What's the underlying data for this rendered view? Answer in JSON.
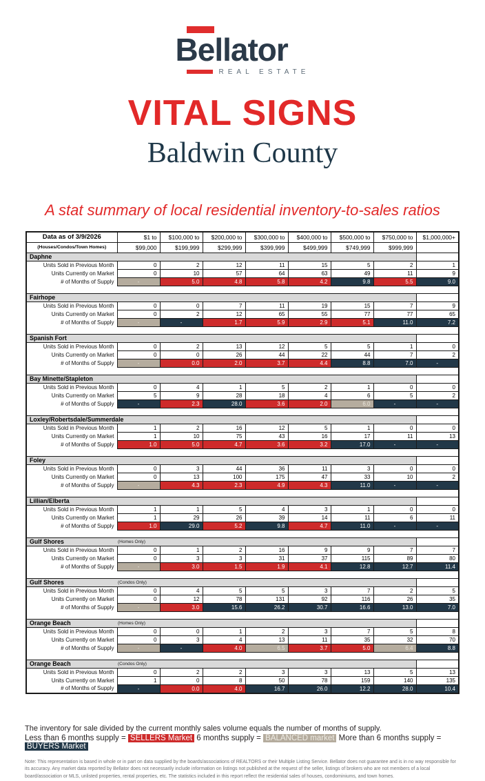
{
  "brand": {
    "name": "Bellator",
    "tagline": "REAL ESTATE"
  },
  "report": {
    "title": "VITAL SIGNS",
    "region": "Baldwin County",
    "subtitle": "A stat summary of local residential inventory-to-sales ratios"
  },
  "colors": {
    "sellers": "#ce2b2b",
    "buyers": "#223848",
    "balanced": "#b5ac9e",
    "section_bg": "#d9d9d9",
    "title_red": "#e22929",
    "navy_text": "#2b3a49",
    "logo_red": "#e02d2d"
  },
  "table": {
    "data_as_of": "Data as of 3/9/2026",
    "property_types": "(Houses/Condos/Town Homes)",
    "price_columns": [
      {
        "line1": "$1 to",
        "line2": "$99,000"
      },
      {
        "line1": "$100,000 to",
        "line2": "$199,999"
      },
      {
        "line1": "$200,000 to",
        "line2": "$299,999"
      },
      {
        "line1": "$300,000 to",
        "line2": "$399,999"
      },
      {
        "line1": "$400,000 to",
        "line2": "$499,999"
      },
      {
        "line1": "$500,000 to",
        "line2": "$749,999"
      },
      {
        "line1": "$750,000 to",
        "line2": "$999,999"
      },
      {
        "line1": "$1,000,000+",
        "line2": ""
      }
    ],
    "row_labels": {
      "sold": "Units Sold in Previous Month",
      "market": "Units Currently on Market",
      "supply": "# of Months of Supply"
    },
    "sections": [
      {
        "name": "Daphne",
        "note": "",
        "sold": [
          0,
          2,
          12,
          11,
          15,
          5,
          2,
          1
        ],
        "market": [
          0,
          10,
          57,
          64,
          63,
          49,
          11,
          9
        ],
        "supply": [
          "-",
          "5.0",
          "4.8",
          "5.8",
          "4.2",
          "9.8",
          "5.5",
          "9.0"
        ],
        "supply_colors": [
          "balanced",
          "sellers",
          "sellers",
          "sellers",
          "sellers",
          "buyers",
          "sellers",
          "buyers"
        ]
      },
      {
        "name": "Fairhope",
        "note": "",
        "sold": [
          0,
          0,
          7,
          11,
          19,
          15,
          7,
          9
        ],
        "market": [
          0,
          2,
          12,
          65,
          55,
          77,
          77,
          65
        ],
        "supply": [
          "-",
          "-",
          "1.7",
          "5.9",
          "2.9",
          "5.1",
          "11.0",
          "7.2"
        ],
        "supply_colors": [
          "balanced",
          "buyers",
          "sellers",
          "sellers",
          "sellers",
          "sellers",
          "buyers",
          "buyers"
        ]
      },
      {
        "name": "Spanish Fort",
        "note": "",
        "sold": [
          0,
          2,
          13,
          12,
          5,
          5,
          1,
          0
        ],
        "market": [
          0,
          0,
          26,
          44,
          22,
          44,
          7,
          2
        ],
        "supply": [
          "-",
          "0.0",
          "2.0",
          "3.7",
          "4.4",
          "8.8",
          "7.0",
          "-"
        ],
        "supply_colors": [
          "balanced",
          "sellers",
          "sellers",
          "sellers",
          "sellers",
          "buyers",
          "buyers",
          "buyers"
        ]
      },
      {
        "name": "Bay Minette/Stapleton",
        "note": "",
        "sold": [
          0,
          4,
          1,
          5,
          2,
          1,
          0,
          0
        ],
        "market": [
          5,
          9,
          28,
          18,
          4,
          6,
          5,
          2
        ],
        "supply": [
          "-",
          "2.3",
          "28.0",
          "3.6",
          "2.0",
          "6.0",
          "-",
          "-"
        ],
        "supply_colors": [
          "buyers",
          "sellers",
          "buyers",
          "sellers",
          "sellers",
          "balanced",
          "buyers",
          "buyers"
        ]
      },
      {
        "name": "Loxley/Robertsdale/Summerdale",
        "note": "",
        "sold": [
          1,
          2,
          16,
          12,
          5,
          1,
          0,
          0
        ],
        "market": [
          1,
          10,
          75,
          43,
          16,
          17,
          11,
          13
        ],
        "supply": [
          "1.0",
          "5.0",
          "4.7",
          "3.6",
          "3.2",
          "17.0",
          "-",
          "-"
        ],
        "supply_colors": [
          "sellers",
          "sellers",
          "sellers",
          "sellers",
          "sellers",
          "buyers",
          "buyers",
          "buyers"
        ]
      },
      {
        "name": "Foley",
        "note": "",
        "sold": [
          0,
          3,
          44,
          36,
          11,
          3,
          0,
          0
        ],
        "market": [
          0,
          13,
          100,
          175,
          47,
          33,
          10,
          2
        ],
        "supply": [
          "-",
          "4.3",
          "2.3",
          "4.9",
          "4.3",
          "11.0",
          "-",
          "-"
        ],
        "supply_colors": [
          "balanced",
          "sellers",
          "sellers",
          "sellers",
          "sellers",
          "buyers",
          "buyers",
          "buyers"
        ]
      },
      {
        "name": "Lillian/Elberta",
        "note": "",
        "sold": [
          1,
          1,
          5,
          4,
          3,
          1,
          0,
          0
        ],
        "market": [
          1,
          29,
          26,
          39,
          14,
          11,
          6,
          11
        ],
        "supply": [
          "1.0",
          "29.0",
          "5.2",
          "9.8",
          "4.7",
          "11.0",
          "-",
          "-"
        ],
        "supply_colors": [
          "sellers",
          "buyers",
          "sellers",
          "buyers",
          "sellers",
          "buyers",
          "buyers",
          "buyers"
        ]
      },
      {
        "name": "Gulf Shores",
        "note": "(Homes Only)",
        "sold": [
          0,
          1,
          2,
          16,
          9,
          9,
          7,
          7
        ],
        "market": [
          0,
          3,
          3,
          31,
          37,
          115,
          89,
          80
        ],
        "supply": [
          "-",
          "3.0",
          "1.5",
          "1.9",
          "4.1",
          "12.8",
          "12.7",
          "11.4"
        ],
        "supply_colors": [
          "balanced",
          "sellers",
          "sellers",
          "sellers",
          "sellers",
          "buyers",
          "buyers",
          "buyers"
        ]
      },
      {
        "name": "Gulf Shores",
        "note": "(Condos Only)",
        "sold": [
          0,
          4,
          5,
          5,
          3,
          7,
          2,
          5
        ],
        "market": [
          0,
          12,
          78,
          131,
          92,
          116,
          26,
          35
        ],
        "supply": [
          "-",
          "3.0",
          "15.6",
          "26.2",
          "30.7",
          "16.6",
          "13.0",
          "7.0"
        ],
        "supply_colors": [
          "balanced",
          "sellers",
          "buyers",
          "buyers",
          "buyers",
          "buyers",
          "buyers",
          "buyers"
        ]
      },
      {
        "name": "Orange Beach",
        "note": "(Homes Only)",
        "sold": [
          0,
          0,
          1,
          2,
          3,
          7,
          5,
          8
        ],
        "market": [
          0,
          3,
          4,
          13,
          11,
          35,
          32,
          70
        ],
        "supply": [
          "-",
          "-",
          "4.0",
          "6.5",
          "3.7",
          "5.0",
          "6.4",
          "8.8"
        ],
        "supply_colors": [
          "balanced",
          "buyers",
          "sellers",
          "balanced",
          "sellers",
          "sellers",
          "balanced",
          "buyers"
        ]
      },
      {
        "name": "Orange Beach",
        "note": "(Condos Only)",
        "sold": [
          0,
          2,
          2,
          3,
          3,
          13,
          5,
          13
        ],
        "market": [
          1,
          0,
          8,
          50,
          78,
          159,
          140,
          135
        ],
        "supply": [
          "-",
          "0.0",
          "4.0",
          "16.7",
          "26.0",
          "12.2",
          "28.0",
          "10.4"
        ],
        "supply_colors": [
          "buyers",
          "sellers",
          "sellers",
          "buyers",
          "buyers",
          "buyers",
          "buyers",
          "buyers"
        ]
      }
    ]
  },
  "footer": {
    "explainer": "The inventory for sale divided by the current monthly sales volume equals the number of months of supply.",
    "legend": [
      {
        "text": "Less than 6 months supply =",
        "chip": "SELLERS Market",
        "type": "sellers"
      },
      {
        "text": "6 months supply =",
        "chip": "BALANCED market",
        "type": "balanced"
      },
      {
        "text": "More than 6 months supply =",
        "chip": "BUYERS Market",
        "type": "buyers"
      }
    ],
    "note": "Note: This representation is based in whole or in part on data supplied by the boards/associations of REALTORS or their Multiple Listing Service. Bellator does not guarantee and is in no way responsible for its accuracy. Any market data reported by Bellator does not necessarily include information on listings not published at the request of the seller, listings of brokers who are not members of a local board/association or MLS, unlisted properties, rental properties, etc. The statistics included in this report reflect the residential sales of houses, condominiums, and town homes."
  }
}
